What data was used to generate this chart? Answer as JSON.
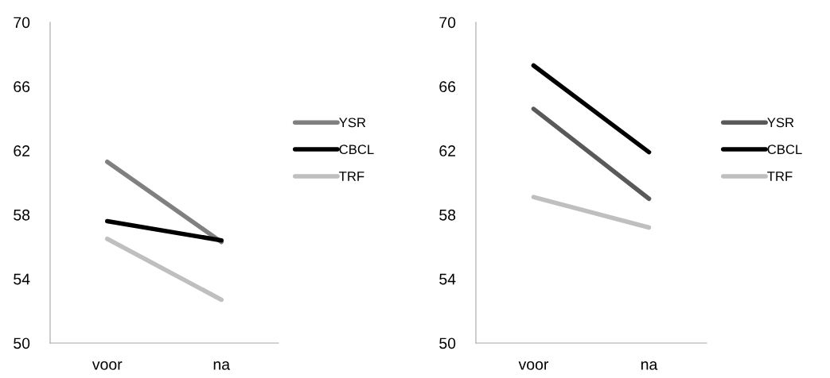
{
  "chart_data": [
    {
      "type": "line",
      "categories": [
        "voor",
        "na"
      ],
      "ylim": [
        50,
        70
      ],
      "yticks": [
        50,
        54,
        58,
        62,
        66,
        70
      ],
      "grid": false,
      "legend": "right",
      "marker": "none",
      "line_style": "solid",
      "series": [
        {
          "name": "YSR",
          "color": "#808080",
          "values": [
            61.3,
            56.3
          ]
        },
        {
          "name": "CBCL",
          "color": "#000000",
          "values": [
            57.6,
            56.4
          ]
        },
        {
          "name": "TRF",
          "color": "#bfbfbf",
          "values": [
            56.5,
            52.7
          ]
        }
      ]
    },
    {
      "type": "line",
      "categories": [
        "voor",
        "na"
      ],
      "ylim": [
        50,
        70
      ],
      "yticks": [
        50,
        54,
        58,
        62,
        66,
        70
      ],
      "grid": false,
      "legend": "right",
      "marker": "none",
      "line_style": "solid",
      "series": [
        {
          "name": "YSR",
          "color": "#595959",
          "values": [
            64.6,
            59.0
          ]
        },
        {
          "name": "CBCL",
          "color": "#000000",
          "values": [
            67.3,
            61.9
          ]
        },
        {
          "name": "TRF",
          "color": "#bfbfbf",
          "values": [
            59.1,
            57.2
          ]
        }
      ]
    }
  ]
}
